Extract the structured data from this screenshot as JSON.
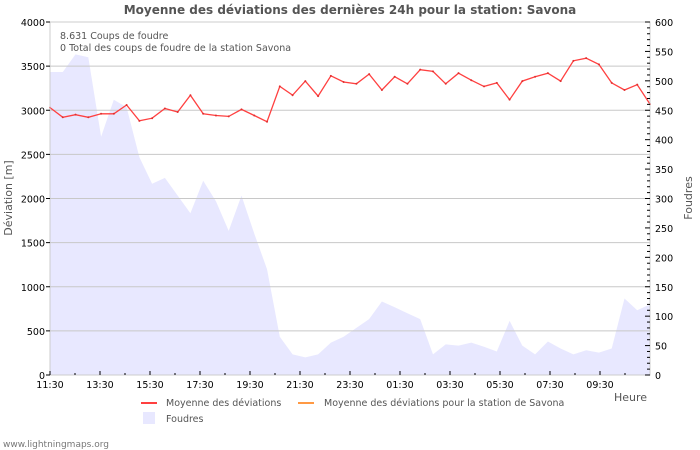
{
  "chart_data": {
    "type": "line",
    "title": "Moyenne des déviations des dernières 24h pour la station: Savona",
    "info_lines": [
      "8.631  Coups de foudre",
      "0 Total des coups de foudre de la station Savona"
    ],
    "xlabel": "Heure",
    "ylabel": "Déviation  [m]",
    "y2label": "Foudres",
    "ylim": [
      0,
      4000
    ],
    "y2lim": [
      0,
      600
    ],
    "yticks": [
      "0",
      "500",
      "1000",
      "1500",
      "2000",
      "2500",
      "3000",
      "3500",
      "4000"
    ],
    "y2ticks": [
      "0",
      "50",
      "100",
      "150",
      "200",
      "250",
      "300",
      "350",
      "400",
      "450",
      "500",
      "550",
      "600"
    ],
    "xticks": [
      "11:30",
      "13:30",
      "15:30",
      "17:30",
      "19:30",
      "21:30",
      "23:30",
      "01:30",
      "03:30",
      "05:30",
      "07:30",
      "09:30"
    ],
    "grid": true,
    "legend_placement": "bottom",
    "series": [
      {
        "name": "Moyenne des déviations",
        "color": "#ff4040",
        "axis": "left",
        "type": "line",
        "values": [
          3030,
          2920,
          2950,
          2920,
          2960,
          2960,
          3060,
          2880,
          2910,
          3020,
          2980,
          3170,
          2960,
          2940,
          2930,
          3010,
          2940,
          2870,
          3270,
          3170,
          3330,
          3160,
          3390,
          3320,
          3300,
          3410,
          3230,
          3380,
          3300,
          3460,
          3440,
          3300,
          3420,
          3340,
          3270,
          3310,
          3120,
          3330,
          3380,
          3420,
          3330,
          3560,
          3590,
          3520,
          3310,
          3230,
          3290,
          3070
        ]
      },
      {
        "name": "Moyenne des déviations pour la station de Savona",
        "color": "#ff9944",
        "axis": "left",
        "type": "line",
        "values": []
      },
      {
        "name": "Foudres",
        "color": "#e8e8ff",
        "axis": "right",
        "type": "area",
        "values": [
          515,
          515,
          545,
          540,
          405,
          468,
          455,
          370,
          325,
          335,
          305,
          275,
          330,
          295,
          245,
          305,
          240,
          180,
          65,
          35,
          30,
          35,
          55,
          65,
          80,
          95,
          125,
          115,
          105,
          95,
          35,
          52,
          50,
          55,
          48,
          40,
          92,
          50,
          35,
          57,
          45,
          35,
          42,
          38,
          45,
          130,
          110,
          120
        ]
      }
    ]
  },
  "footer": "www.lightningmaps.org"
}
